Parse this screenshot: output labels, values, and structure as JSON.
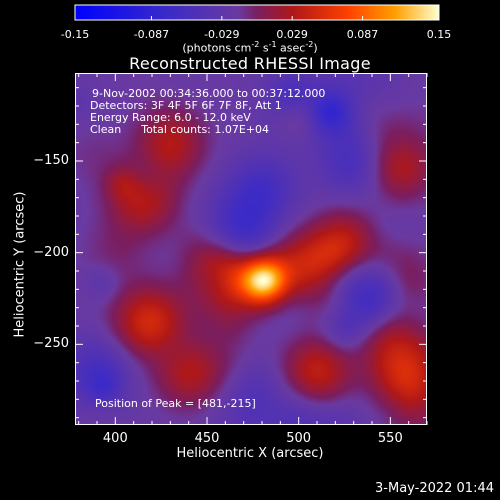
{
  "colorbar": {
    "ticks": [
      "-0.15",
      "-0.087",
      "-0.029",
      "0.029",
      "0.087",
      "0.15"
    ],
    "units_prefix": "(photons cm",
    "units_sup1": "-2",
    "units_mid1": " s",
    "units_sup2": "-1",
    "units_mid2": " asec",
    "units_sup3": "-2",
    "units_suffix": ")"
  },
  "annotations": {
    "time": "9-Nov-2002 00:34:36.000 to 00:37:12.000",
    "detectors": "Detectors: 3F 4F 5F 6F 7F 8F, Att 1",
    "energy": "Energy Range: 6.0 - 12.0 keV",
    "clean_label": "Clean",
    "counts": "Total counts: 1.07E+04",
    "peak": "Position of Peak = [481,-215]"
  },
  "footer": {
    "date": "3-May-2022 01:44"
  },
  "chart_data": {
    "type": "heatmap",
    "title": "Reconstructed RHESSI Image",
    "xlabel": "Heliocentric X (arcsec)",
    "ylabel": "Heliocentric Y (arcsec)",
    "xlim": [
      378,
      570
    ],
    "ylim": [
      -294,
      -102
    ],
    "xticks": [
      400,
      450,
      500,
      550
    ],
    "yticks": [
      -150,
      -200,
      -250
    ],
    "colorbar_range": [
      -0.15,
      0.15
    ],
    "colors": {
      "low": "#0000ff",
      "mid_low": "#6a3aa0",
      "mid": "#a01818",
      "high": "#ffa000",
      "peak": "#ffffd0"
    },
    "peak_position": [
      481,
      -215
    ],
    "features": [
      {
        "x": 481,
        "y": -215,
        "value": 0.15
      },
      {
        "x": 460,
        "y": -210,
        "value": 0.09
      },
      {
        "x": 505,
        "y": -208,
        "value": 0.08
      },
      {
        "x": 525,
        "y": -195,
        "value": 0.05
      },
      {
        "x": 415,
        "y": -170,
        "value": 0.06
      },
      {
        "x": 430,
        "y": -140,
        "value": 0.05
      },
      {
        "x": 400,
        "y": -200,
        "value": 0.04
      },
      {
        "x": 420,
        "y": -240,
        "value": 0.05
      },
      {
        "x": 440,
        "y": -265,
        "value": 0.05
      },
      {
        "x": 510,
        "y": -265,
        "value": 0.06
      },
      {
        "x": 550,
        "y": -250,
        "value": 0.05
      },
      {
        "x": 560,
        "y": -270,
        "value": 0.06
      },
      {
        "x": 555,
        "y": -150,
        "value": 0.05
      },
      {
        "x": 480,
        "y": -165,
        "value": -0.04
      },
      {
        "x": 470,
        "y": -195,
        "value": -0.05
      },
      {
        "x": 530,
        "y": -150,
        "value": -0.04
      },
      {
        "x": 390,
        "y": -265,
        "value": -0.04
      },
      {
        "x": 535,
        "y": -220,
        "value": -0.03
      },
      {
        "x": 545,
        "y": -120,
        "value": -0.03
      },
      {
        "x": 505,
        "y": -290,
        "value": -0.03
      }
    ]
  }
}
